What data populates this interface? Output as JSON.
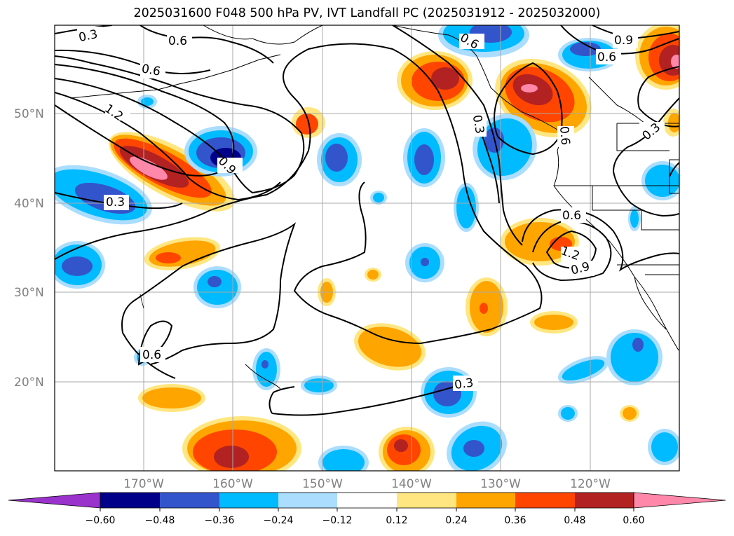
{
  "title": "2025031600 F048 500 hPa PV, IVT Landfall PC (2025031912 - 2025032000)",
  "map": {
    "lat_labels": [
      "50°N",
      "40°N",
      "30°N",
      "20°N"
    ],
    "lon_labels": [
      "170°W",
      "160°W",
      "150°W",
      "140°W",
      "130°W",
      "120°W"
    ],
    "contour_labels": [
      "0.3",
      "0.6",
      "0.6",
      "1.2",
      "0.9",
      "0.3",
      "0.6",
      "0.6",
      "0.3",
      "0.9",
      "0.6",
      "0.3",
      "0.6",
      "1.2",
      "0.9",
      "0.6",
      "0.3"
    ]
  },
  "colorbar": {
    "ticks": [
      "−0.60",
      "−0.48",
      "−0.36",
      "−0.24",
      "−0.12",
      "0.12",
      "0.24",
      "0.36",
      "0.48",
      "0.60"
    ],
    "colors": [
      "#9933cc",
      "#000088",
      "#3355cc",
      "#00bbff",
      "#aaddff",
      "#ffffff",
      "#ffe680",
      "#ffa500",
      "#ff4500",
      "#b22222",
      "#ff88aa"
    ]
  }
}
